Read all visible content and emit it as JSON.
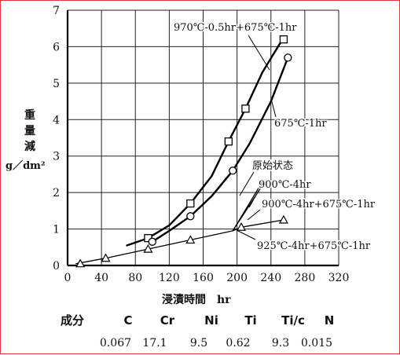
{
  "chart_data": {
    "type": "line",
    "ylabel": "重量減 g／dm²",
    "xlabel": "浸漬時間　hr",
    "xlim": [
      0,
      320
    ],
    "ylim": [
      0,
      7
    ],
    "xticks": [
      0,
      40,
      80,
      120,
      160,
      200,
      240,
      280,
      320
    ],
    "yticks": [
      0,
      1,
      2,
      3,
      4,
      5,
      6,
      7
    ],
    "grid": true,
    "series": [
      {
        "name": "970℃-0.5hr+675℃-1hr",
        "marker": "square",
        "markers": [
          [
            95,
            0.75
          ],
          [
            145,
            1.7
          ],
          [
            190,
            3.4
          ],
          [
            210,
            4.3
          ],
          [
            255,
            6.2
          ]
        ],
        "line": [
          [
            70,
            0.55
          ],
          [
            95,
            0.75
          ],
          [
            120,
            1.1
          ],
          [
            145,
            1.7
          ],
          [
            170,
            2.45
          ],
          [
            190,
            3.4
          ],
          [
            210,
            4.3
          ],
          [
            230,
            5.3
          ],
          [
            255,
            6.25
          ]
        ]
      },
      {
        "name": "675℃-1hr",
        "marker": "circle",
        "markers": [
          [
            100,
            0.65
          ],
          [
            145,
            1.35
          ],
          [
            195,
            2.6
          ],
          [
            260,
            5.7
          ]
        ],
        "line": [
          [
            100,
            0.65
          ],
          [
            120,
            0.95
          ],
          [
            145,
            1.35
          ],
          [
            170,
            1.9
          ],
          [
            195,
            2.6
          ],
          [
            215,
            3.35
          ],
          [
            240,
            4.5
          ],
          [
            260,
            5.7
          ]
        ]
      },
      {
        "name": "900℃-4hr+675℃-1hr",
        "marker": "triangle",
        "markers": [
          [
            15,
            0.05
          ],
          [
            45,
            0.2
          ],
          [
            95,
            0.45
          ],
          [
            145,
            0.7
          ],
          [
            205,
            1.05
          ],
          [
            255,
            1.25
          ]
        ],
        "line": [
          [
            10,
            0.05
          ],
          [
            45,
            0.2
          ],
          [
            95,
            0.45
          ],
          [
            145,
            0.7
          ],
          [
            195,
            0.95
          ],
          [
            205,
            1.05
          ],
          [
            255,
            1.25
          ]
        ]
      },
      {
        "name": "900℃-4hr",
        "marker": "none",
        "markers": [],
        "line": [
          [
            195,
            0.95
          ],
          [
            230,
            2.3
          ]
        ]
      },
      {
        "name": "925℃-4hr+675℃-1hr",
        "marker": "none",
        "markers": [],
        "line": [
          [
            195,
            0.95
          ],
          [
            230,
            2.2
          ]
        ]
      }
    ],
    "annotations": [
      {
        "text": "970℃-0.5hr+675℃-1hr"
      },
      {
        "text": "675℃-1hr"
      },
      {
        "text": "原始状态"
      },
      {
        "text": "900℃-4hr"
      },
      {
        "text": "900℃-4hr+675℃-1hr"
      },
      {
        "text": "925℃-4hr+675℃-1hr"
      }
    ]
  },
  "composition": {
    "label": "成分",
    "elements": [
      "C",
      "Cr",
      "Ni",
      "Ti",
      "Ti/c",
      "N"
    ],
    "values": [
      "0.067",
      "17.1",
      "9.5",
      "0.62",
      "9.3",
      "0.015"
    ]
  }
}
